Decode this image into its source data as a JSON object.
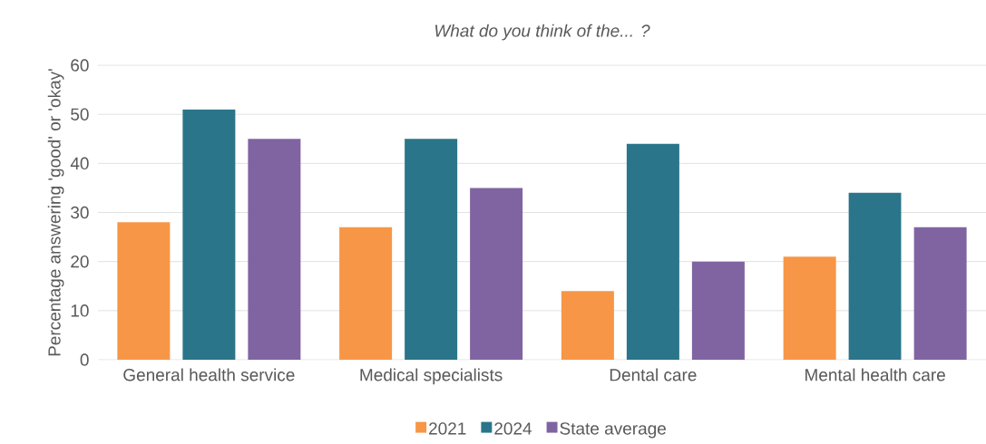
{
  "chart_data": {
    "type": "bar",
    "title": "What do you think of the... ?",
    "ylabel": "Percentage answering 'good' or 'okay'",
    "categories": [
      "General health service",
      "Medical specialists",
      "Dental care",
      "Mental health care"
    ],
    "series": [
      {
        "name": "2021",
        "color": "#f79646",
        "values": [
          28,
          27,
          14,
          21
        ]
      },
      {
        "name": "2024",
        "color": "#2a7589",
        "values": [
          51,
          45,
          44,
          34
        ]
      },
      {
        "name": "State average",
        "color": "#8064a2",
        "values": [
          45,
          35,
          20,
          27
        ]
      }
    ],
    "ylim": [
      0,
      60
    ],
    "yticks": [
      0,
      10,
      20,
      30,
      40,
      50,
      60
    ],
    "grid": "y",
    "legend": "bottom"
  }
}
